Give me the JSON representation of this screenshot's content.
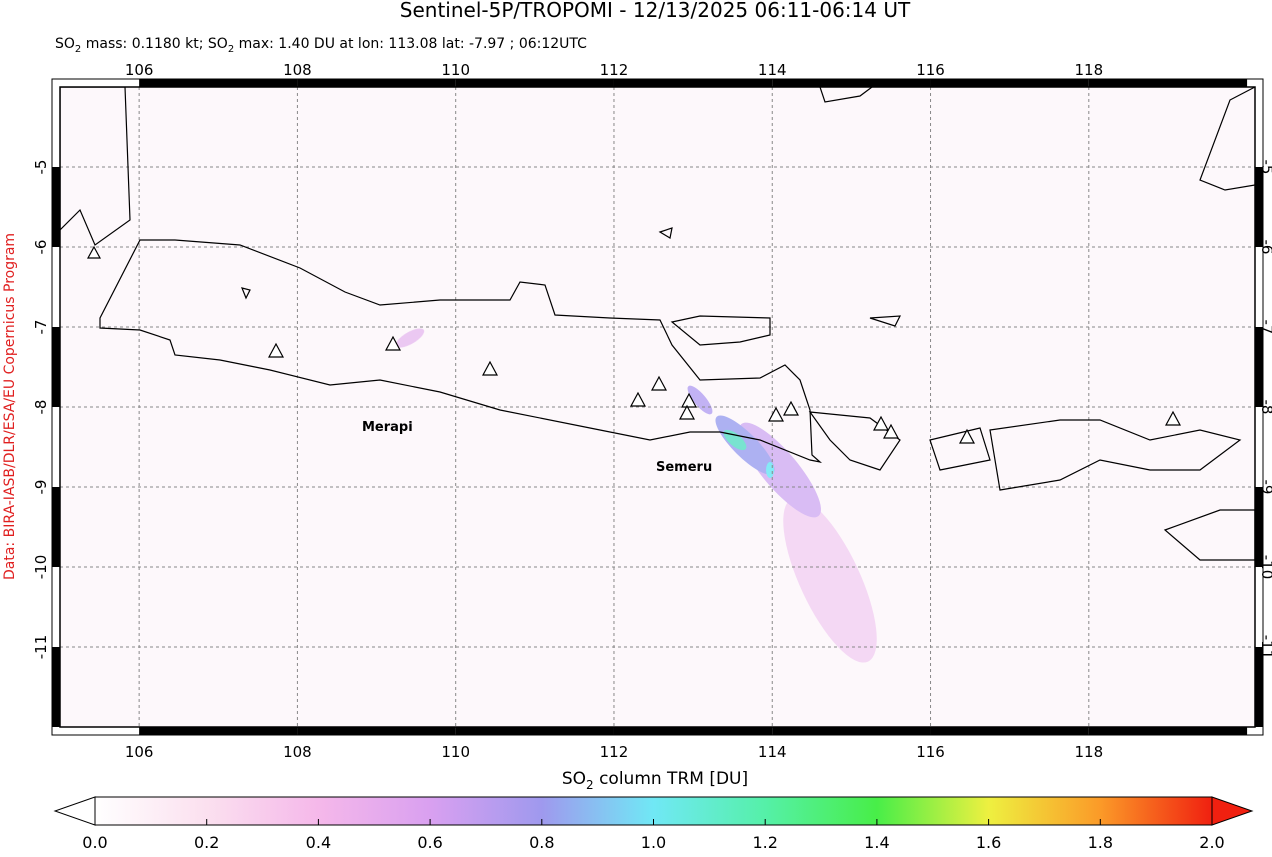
{
  "title": "Sentinel-5P/TROPOMI - 12/13/2025 06:11-06:14 UT",
  "subtitle": [
    "SO",
    "2",
    " mass: 0.1180 kt; SO",
    "2",
    " max: 1.40 DU at lon: 113.08 lat: -7.97 ; 06:12UTC"
  ],
  "credit": "Data: BIRA-IASB/DLR/ESA/EU Copernicus Program",
  "map": {
    "lon_range": [
      105,
      120.1
    ],
    "lat_range": [
      -12,
      -4
    ],
    "lon_ticks": [
      106,
      108,
      110,
      112,
      114,
      116,
      118
    ],
    "lat_ticks": [
      -5,
      -6,
      -7,
      -8,
      -9,
      -10,
      -11
    ],
    "volcano_labels": [
      "Merapi",
      "Semeru"
    ]
  },
  "colorbar": {
    "label": [
      "SO",
      "2",
      " column TRM [DU]"
    ],
    "range": [
      0,
      2
    ],
    "ticks": [
      {
        "value": 0,
        "label": "0.0"
      },
      0.2,
      0.4,
      0.6,
      0.8,
      {
        "value": 1,
        "label": "1.0"
      },
      1.2,
      1.4,
      1.6,
      1.8,
      {
        "value": 2,
        "label": "2.0"
      }
    ]
  }
}
